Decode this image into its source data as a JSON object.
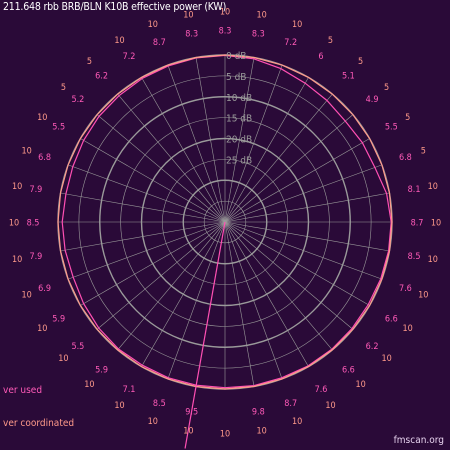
{
  "title": "211.648 rbb BRB/BLN K10B effective power (KW)",
  "legend": {
    "used": "ver used",
    "coordinated": "ver coordinated"
  },
  "credit": "fmscan.org",
  "colors": {
    "background": "#2a0a38",
    "grid": "#9a9a9a",
    "used": "#ff4fb3",
    "coordinated": "#ff9a8a",
    "label_used": "#ff5ab8",
    "label_coordinated": "#ff9a8a"
  },
  "chart_data": {
    "type": "polar",
    "title": "211.648 rbb BRB/BLN K10B effective power (KW)",
    "radial_unit": "dB",
    "radial_ticks": [
      "0 dB",
      "5 dB",
      "10 dB",
      "15 dB",
      "20 dB",
      "25 dB"
    ],
    "radial_tick_values": [
      0,
      5,
      10,
      15,
      20,
      25
    ],
    "radial_range": [
      0,
      40
    ],
    "angle_step_deg": 10,
    "series": [
      {
        "name": "ver used",
        "azimuth_deg": [
          0,
          10,
          20,
          30,
          40,
          50,
          60,
          70,
          80,
          90,
          100,
          110,
          120,
          130,
          140,
          150,
          160,
          170,
          180,
          190,
          200,
          210,
          220,
          230,
          240,
          250,
          260,
          270,
          280,
          290,
          300,
          310,
          320,
          330,
          340,
          350
        ],
        "attenuation_db": [
          0.1,
          0.3,
          0.9,
          1.6,
          2.0,
          2.4,
          2.0,
          1.8,
          0.7,
          0.2,
          0.2,
          0.3,
          0.4,
          0.3,
          0.2,
          0.2,
          0.3,
          0.2,
          0.3,
          0.3,
          0.3,
          0.4,
          0.3,
          0.5,
          0.9,
          1.3,
          1.1,
          1.0,
          1.3,
          1.2,
          0.9,
          0.6,
          0.5,
          0.3,
          0.2,
          0.1
        ]
      },
      {
        "name": "ver coordinated",
        "azimuth_deg": [
          0,
          10,
          20,
          30,
          40,
          50,
          60,
          70,
          80,
          90,
          100,
          110,
          120,
          130,
          140,
          150,
          160,
          170,
          180,
          190,
          200,
          210,
          220,
          230,
          240,
          250,
          260,
          270,
          280,
          290,
          300,
          310,
          320,
          330,
          340,
          350
        ],
        "attenuation_db": [
          0,
          0,
          0,
          0,
          0,
          0,
          0,
          0,
          0,
          0,
          0,
          0,
          0,
          0,
          0,
          0,
          0,
          0,
          0,
          0,
          0,
          0,
          0,
          0,
          0,
          0,
          0,
          0,
          0,
          0,
          0,
          0,
          0,
          0,
          0,
          0
        ]
      }
    ],
    "direction_line_azimuth_deg": 190,
    "outer_labels_used": [
      {
        "az": 0,
        "text": "8.3"
      },
      {
        "az": 10,
        "text": "8.3"
      },
      {
        "az": 20,
        "text": "7.2"
      },
      {
        "az": 30,
        "text": "6"
      },
      {
        "az": 40,
        "text": "5.1"
      },
      {
        "az": 50,
        "text": "4.9"
      },
      {
        "az": 60,
        "text": "5.5"
      },
      {
        "az": 70,
        "text": "6.8"
      },
      {
        "az": 80,
        "text": "8.1"
      },
      {
        "az": 90,
        "text": "8.7"
      },
      {
        "az": 100,
        "text": "8.5"
      },
      {
        "az": 110,
        "text": "7.6"
      },
      {
        "az": 120,
        "text": "6.6"
      },
      {
        "az": 130,
        "text": "6.2"
      },
      {
        "az": 140,
        "text": "6.6"
      },
      {
        "az": 150,
        "text": "7.6"
      },
      {
        "az": 160,
        "text": "8.7"
      },
      {
        "az": 170,
        "text": "9.8"
      },
      {
        "az": 190,
        "text": "9.5"
      },
      {
        "az": 200,
        "text": "8.5"
      },
      {
        "az": 210,
        "text": "7.1"
      },
      {
        "az": 220,
        "text": "5.9"
      },
      {
        "az": 230,
        "text": "5.5"
      },
      {
        "az": 240,
        "text": "5.9"
      },
      {
        "az": 250,
        "text": "6.9"
      },
      {
        "az": 260,
        "text": "7.9"
      },
      {
        "az": 270,
        "text": "8.5"
      },
      {
        "az": 280,
        "text": "7.9"
      },
      {
        "az": 290,
        "text": "6.8"
      },
      {
        "az": 300,
        "text": "5.5"
      },
      {
        "az": 310,
        "text": "5.2"
      },
      {
        "az": 320,
        "text": "6.2"
      },
      {
        "az": 330,
        "text": "7.2"
      },
      {
        "az": 340,
        "text": "8.7"
      },
      {
        "az": 350,
        "text": "8.3"
      }
    ],
    "outer_labels_coordinated": [
      {
        "az": 0,
        "text": "10"
      },
      {
        "az": 10,
        "text": "10"
      },
      {
        "az": 20,
        "text": "10"
      },
      {
        "az": 30,
        "text": "5"
      },
      {
        "az": 40,
        "text": "5"
      },
      {
        "az": 50,
        "text": "5"
      },
      {
        "az": 60,
        "text": "5"
      },
      {
        "az": 70,
        "text": "5"
      },
      {
        "az": 80,
        "text": "10"
      },
      {
        "az": 90,
        "text": "10"
      },
      {
        "az": 100,
        "text": "10"
      },
      {
        "az": 110,
        "text": "10"
      },
      {
        "az": 120,
        "text": "10"
      },
      {
        "az": 130,
        "text": "10"
      },
      {
        "az": 140,
        "text": "10"
      },
      {
        "az": 150,
        "text": "10"
      },
      {
        "az": 160,
        "text": "10"
      },
      {
        "az": 170,
        "text": "10"
      },
      {
        "az": 180,
        "text": "10"
      },
      {
        "az": 190,
        "text": "10"
      },
      {
        "az": 200,
        "text": "10"
      },
      {
        "az": 210,
        "text": "10"
      },
      {
        "az": 220,
        "text": "10"
      },
      {
        "az": 230,
        "text": "10"
      },
      {
        "az": 240,
        "text": "10"
      },
      {
        "az": 250,
        "text": "10"
      },
      {
        "az": 260,
        "text": "10"
      },
      {
        "az": 270,
        "text": "10"
      },
      {
        "az": 280,
        "text": "10"
      },
      {
        "az": 290,
        "text": "10"
      },
      {
        "az": 300,
        "text": "10"
      },
      {
        "az": 310,
        "text": "5"
      },
      {
        "az": 320,
        "text": "5"
      },
      {
        "az": 330,
        "text": "10"
      },
      {
        "az": 340,
        "text": "10"
      },
      {
        "az": 350,
        "text": "10"
      }
    ]
  }
}
